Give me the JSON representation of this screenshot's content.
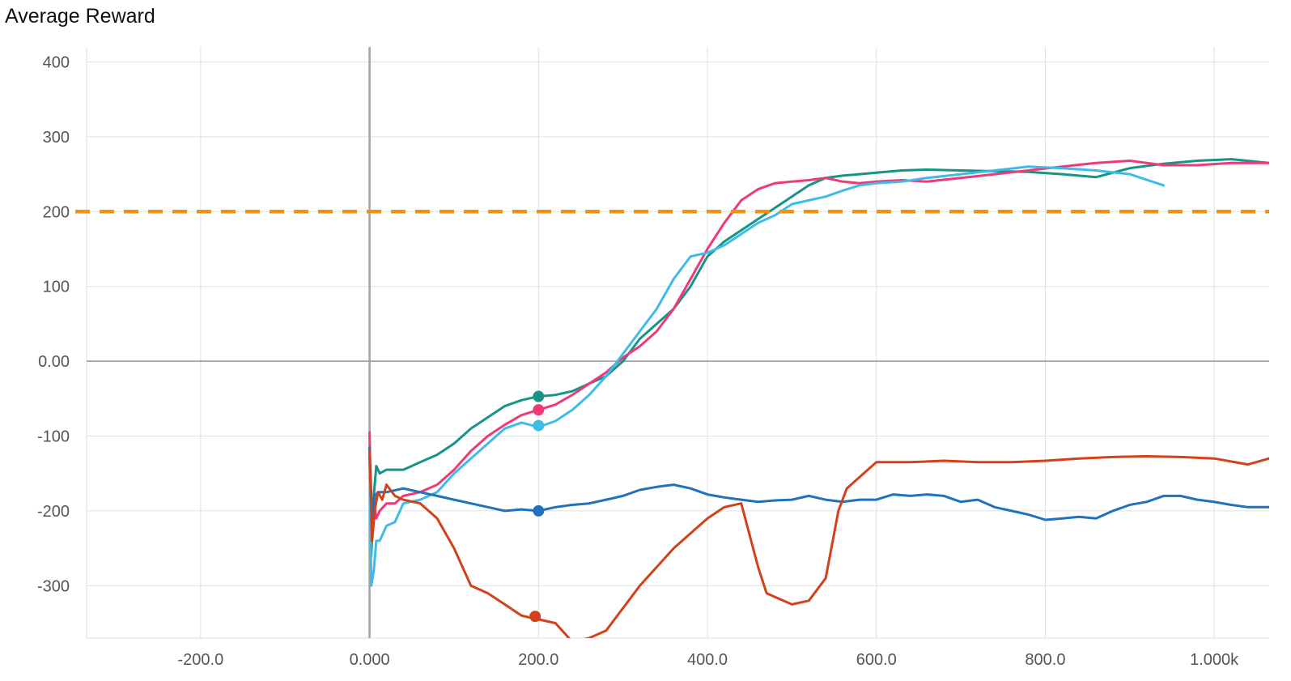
{
  "chart_data": {
    "type": "line",
    "title": "Average Reward",
    "xlabel": "",
    "ylabel": "",
    "xlim": [
      -335,
      1065
    ],
    "ylim": [
      -370,
      420
    ],
    "grid": true,
    "legend": "none",
    "x_ticks": [
      {
        "value": -200,
        "label": "-200.0"
      },
      {
        "value": 0,
        "label": "0.000"
      },
      {
        "value": 200,
        "label": "200.0"
      },
      {
        "value": 400,
        "label": "400.0"
      },
      {
        "value": 600,
        "label": "600.0"
      },
      {
        "value": 800,
        "label": "800.0"
      },
      {
        "value": 1000,
        "label": "1.000k"
      }
    ],
    "y_ticks": [
      {
        "value": 400,
        "label": "400"
      },
      {
        "value": 300,
        "label": "300"
      },
      {
        "value": 200,
        "label": "200"
      },
      {
        "value": 100,
        "label": "100"
      },
      {
        "value": 0,
        "label": "0.00"
      },
      {
        "value": -100,
        "label": "-100"
      },
      {
        "value": -200,
        "label": "-200"
      },
      {
        "value": -300,
        "label": "-300"
      }
    ],
    "reference_line": {
      "y": 200,
      "color": "#f5900a",
      "style": "dashed"
    },
    "series": [
      {
        "color": "#169486",
        "x": [
          0,
          2,
          5,
          8,
          12,
          20,
          40,
          60,
          80,
          100,
          120,
          140,
          160,
          180,
          200,
          220,
          240,
          260,
          280,
          300,
          320,
          340,
          360,
          380,
          400,
          420,
          440,
          460,
          480,
          500,
          520,
          540,
          560,
          580,
          600,
          630,
          660,
          700,
          740,
          780,
          820,
          860,
          900,
          940,
          980,
          1020,
          1065
        ],
        "y": [
          -120,
          -260,
          -180,
          -140,
          -150,
          -145,
          -145,
          -135,
          -125,
          -110,
          -90,
          -75,
          -60,
          -52,
          -47,
          -45,
          -40,
          -30,
          -20,
          0,
          30,
          50,
          70,
          100,
          140,
          160,
          175,
          190,
          205,
          220,
          235,
          245,
          248,
          250,
          252,
          255,
          256,
          255,
          254,
          253,
          250,
          246,
          258,
          264,
          268,
          270,
          265
        ]
      },
      {
        "color": "#ee3a78",
        "x": [
          0,
          2,
          5,
          8,
          12,
          20,
          30,
          40,
          60,
          80,
          100,
          120,
          140,
          160,
          180,
          200,
          220,
          240,
          260,
          280,
          300,
          320,
          340,
          360,
          380,
          400,
          420,
          440,
          460,
          480,
          500,
          520,
          540,
          560,
          580,
          600,
          630,
          660,
          700,
          740,
          780,
          820,
          860,
          900,
          940,
          980,
          1020,
          1065
        ],
        "y": [
          -95,
          -230,
          -185,
          -210,
          -200,
          -190,
          -190,
          -180,
          -175,
          -165,
          -145,
          -120,
          -100,
          -85,
          -72,
          -65,
          -58,
          -45,
          -30,
          -15,
          5,
          20,
          40,
          70,
          110,
          150,
          185,
          215,
          230,
          238,
          240,
          242,
          245,
          240,
          238,
          240,
          242,
          240,
          245,
          250,
          255,
          260,
          265,
          268,
          262,
          262,
          265,
          265
        ]
      },
      {
        "color": "#3fbbea",
        "x": [
          0,
          2,
          5,
          8,
          12,
          20,
          30,
          40,
          60,
          80,
          100,
          120,
          140,
          160,
          180,
          200,
          220,
          240,
          260,
          280,
          300,
          320,
          340,
          360,
          380,
          400,
          420,
          440,
          460,
          480,
          500,
          520,
          540,
          560,
          580,
          600,
          630,
          660,
          700,
          740,
          780,
          820,
          860,
          900,
          940
        ],
        "y": [
          -130,
          -300,
          -280,
          -240,
          -240,
          -220,
          -215,
          -190,
          -185,
          -175,
          -150,
          -130,
          -110,
          -90,
          -82,
          -88,
          -80,
          -65,
          -45,
          -20,
          10,
          40,
          70,
          110,
          140,
          145,
          155,
          170,
          185,
          195,
          210,
          215,
          220,
          228,
          235,
          238,
          240,
          245,
          250,
          255,
          260,
          258,
          255,
          250,
          235
        ]
      },
      {
        "color": "#1f72bb",
        "x": [
          0,
          3,
          6,
          10,
          20,
          40,
          60,
          80,
          100,
          120,
          140,
          160,
          180,
          200,
          220,
          240,
          260,
          280,
          300,
          320,
          340,
          360,
          380,
          400,
          420,
          440,
          460,
          480,
          500,
          520,
          540,
          560,
          580,
          600,
          620,
          640,
          660,
          680,
          700,
          720,
          740,
          760,
          780,
          800,
          820,
          840,
          860,
          880,
          900,
          920,
          940,
          960,
          980,
          1000,
          1020,
          1040,
          1065
        ],
        "y": [
          -115,
          -210,
          -180,
          -175,
          -175,
          -170,
          -175,
          -180,
          -185,
          -190,
          -195,
          -200,
          -198,
          -200,
          -195,
          -192,
          -190,
          -185,
          -180,
          -172,
          -168,
          -165,
          -170,
          -178,
          -182,
          -185,
          -188,
          -186,
          -185,
          -180,
          -185,
          -188,
          -185,
          -185,
          -178,
          -180,
          -178,
          -180,
          -188,
          -185,
          -195,
          -200,
          -205,
          -212,
          -210,
          -208,
          -210,
          -200,
          -192,
          -188,
          -180,
          -180,
          -185,
          -188,
          -192,
          -195,
          -195
        ]
      },
      {
        "color": "#d24119",
        "x": [
          0,
          3,
          6,
          10,
          15,
          20,
          30,
          40,
          60,
          80,
          100,
          120,
          140,
          160,
          180,
          200,
          220,
          240,
          260,
          280,
          300,
          320,
          340,
          360,
          380,
          400,
          420,
          440,
          460,
          470,
          480,
          500,
          520,
          540,
          555,
          565,
          580,
          600,
          640,
          680,
          720,
          760,
          800,
          840,
          880,
          920,
          960,
          1000,
          1040,
          1065
        ],
        "y": [
          -120,
          -240,
          -200,
          -175,
          -185,
          -165,
          -180,
          -185,
          -190,
          -210,
          -250,
          -300,
          -310,
          -325,
          -340,
          -345,
          -350,
          -375,
          -370,
          -360,
          -330,
          -300,
          -275,
          -250,
          -230,
          -210,
          -195,
          -190,
          -275,
          -310,
          -315,
          -325,
          -320,
          -290,
          -200,
          -170,
          -155,
          -135,
          -135,
          -133,
          -135,
          -135,
          -133,
          -130,
          -128,
          -127,
          -128,
          -130,
          -138,
          -130
        ]
      }
    ],
    "markers": [
      {
        "x": 200,
        "y": -47,
        "color": "#169486"
      },
      {
        "x": 200,
        "y": -65,
        "color": "#ee3a78"
      },
      {
        "x": 200,
        "y": -86,
        "color": "#3fbbea"
      },
      {
        "x": 200,
        "y": -200,
        "color": "#1f72bb"
      },
      {
        "x": 196,
        "y": -341,
        "color": "#d24119"
      }
    ]
  }
}
